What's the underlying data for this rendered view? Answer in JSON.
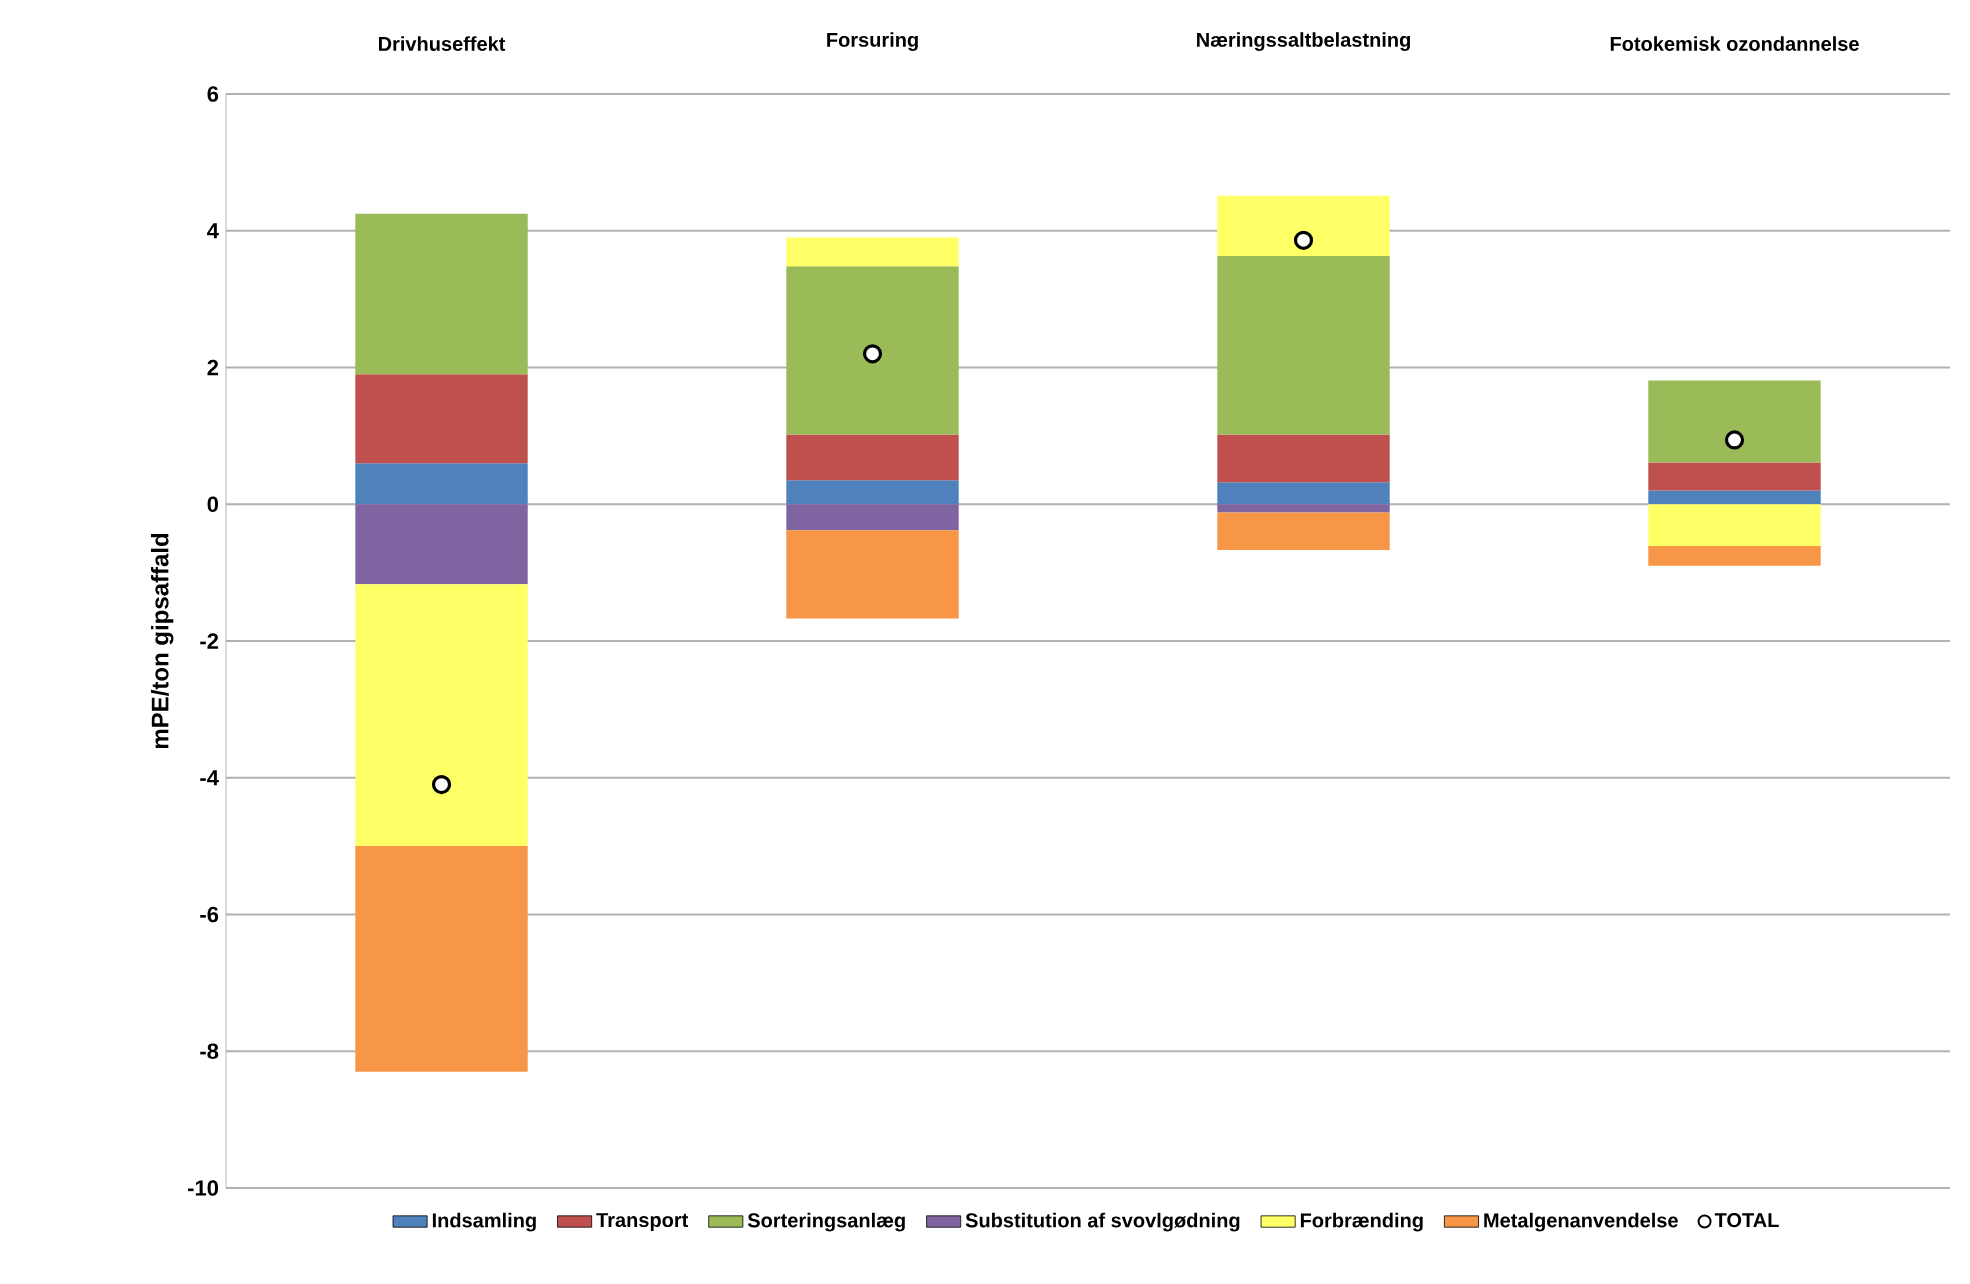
{
  "chart_data": {
    "type": "bar",
    "stacked": true,
    "ylabel": "mPE/ton gipsaffald",
    "categories": [
      "Drivhuseffekt",
      "Forsuring",
      "Næringssaltbelastning",
      "Fotokemisk ozondannelse"
    ],
    "series": [
      {
        "name": "Indsamling",
        "color": "#4f81bd",
        "values": [
          0.6,
          0.35,
          0.32,
          0.2
        ]
      },
      {
        "name": "Transport",
        "color": "#c0504d",
        "values": [
          1.3,
          0.67,
          0.7,
          0.41
        ]
      },
      {
        "name": "Sorteringsanlæg",
        "color": "#9bbb59",
        "values": [
          2.35,
          2.46,
          2.61,
          1.2
        ]
      },
      {
        "name": "Substitution af svovlgødning",
        "color": "#8064a2",
        "values": [
          -1.17,
          -0.38,
          -0.12,
          0
        ]
      },
      {
        "name": "Forbrænding",
        "color": "#ffff66",
        "values": [
          -3.83,
          0.42,
          0.88,
          -0.61
        ]
      },
      {
        "name": "Metalgenanvendelse",
        "color": "#f79646",
        "values": [
          -3.3,
          -1.29,
          -0.55,
          -0.29
        ]
      },
      {
        "name": "TOTAL",
        "type": "scatter",
        "marker": "circle",
        "color": "#ffffff",
        "values": [
          -4.1,
          2.2,
          3.86,
          0.94
        ]
      }
    ],
    "ylim": [
      -10,
      6
    ],
    "yticks": [
      -10,
      -8,
      -6,
      -4,
      -2,
      0,
      2,
      4,
      6
    ],
    "grid": "y",
    "legend": "bottom"
  }
}
